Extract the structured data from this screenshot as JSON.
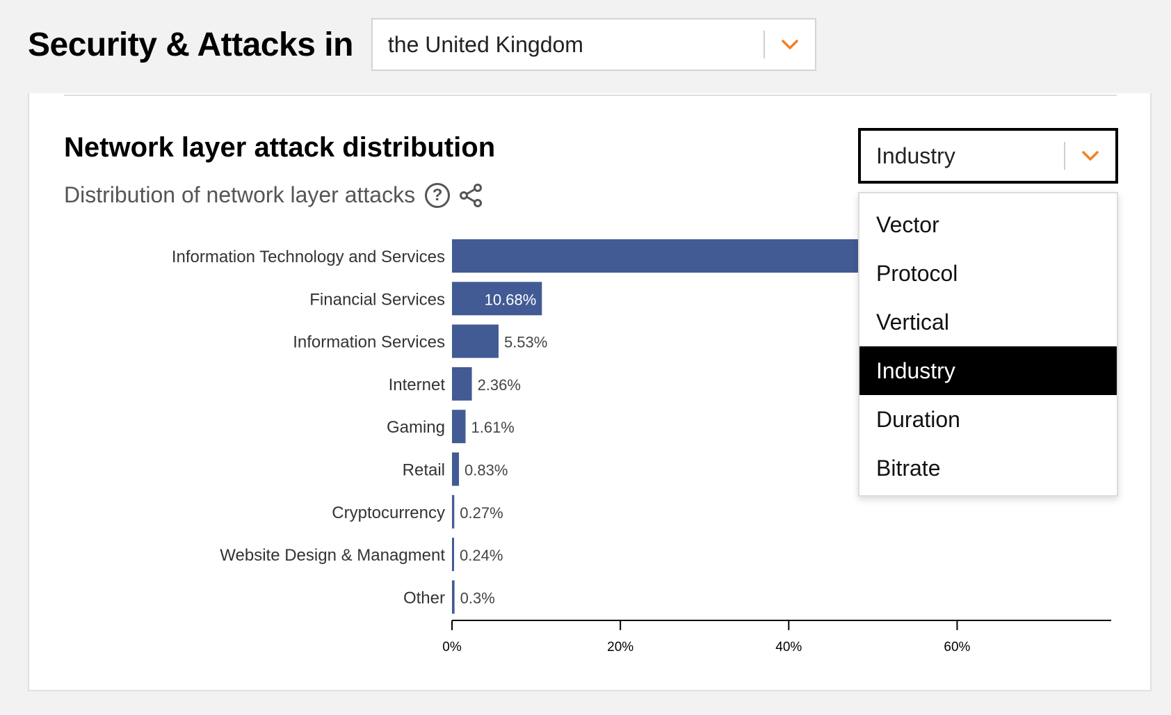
{
  "header": {
    "title": "Security & Attacks in",
    "location_select": {
      "value": "the United Kingdom"
    }
  },
  "card": {
    "title": "Network layer attack distribution",
    "subtitle": "Distribution of network layer attacks",
    "help_icon": "question-circle-icon",
    "share_icon": "share-icon",
    "metric_select": {
      "value": "Industry",
      "options": [
        "Vector",
        "Protocol",
        "Vertical",
        "Industry",
        "Duration",
        "Bitrate"
      ],
      "selected": "Industry"
    }
  },
  "colors": {
    "bar": "#425b94",
    "accent": "#f38020",
    "axis": "#000000",
    "text": "#333333"
  },
  "chart_data": {
    "type": "bar",
    "orientation": "horizontal",
    "categories": [
      "Information Technology and Services",
      "Financial Services",
      "Information Services",
      "Internet",
      "Gaming",
      "Retail",
      "Cryptocurrency",
      "Website Design & Managment",
      "Other"
    ],
    "values": [
      78.08,
      10.68,
      5.53,
      2.36,
      1.61,
      0.83,
      0.27,
      0.24,
      0.3
    ],
    "labels": [
      "",
      "10.68%",
      "5.53%",
      "2.36%",
      "1.61%",
      "0.83%",
      "0.27%",
      "0.24%",
      "0.3%"
    ],
    "xticks": [
      "0%",
      "20%",
      "40%",
      "60%"
    ],
    "xtick_values": [
      0,
      20,
      40,
      60
    ],
    "xlim": [
      0,
      78.3
    ],
    "grid": false,
    "legend": "none"
  }
}
